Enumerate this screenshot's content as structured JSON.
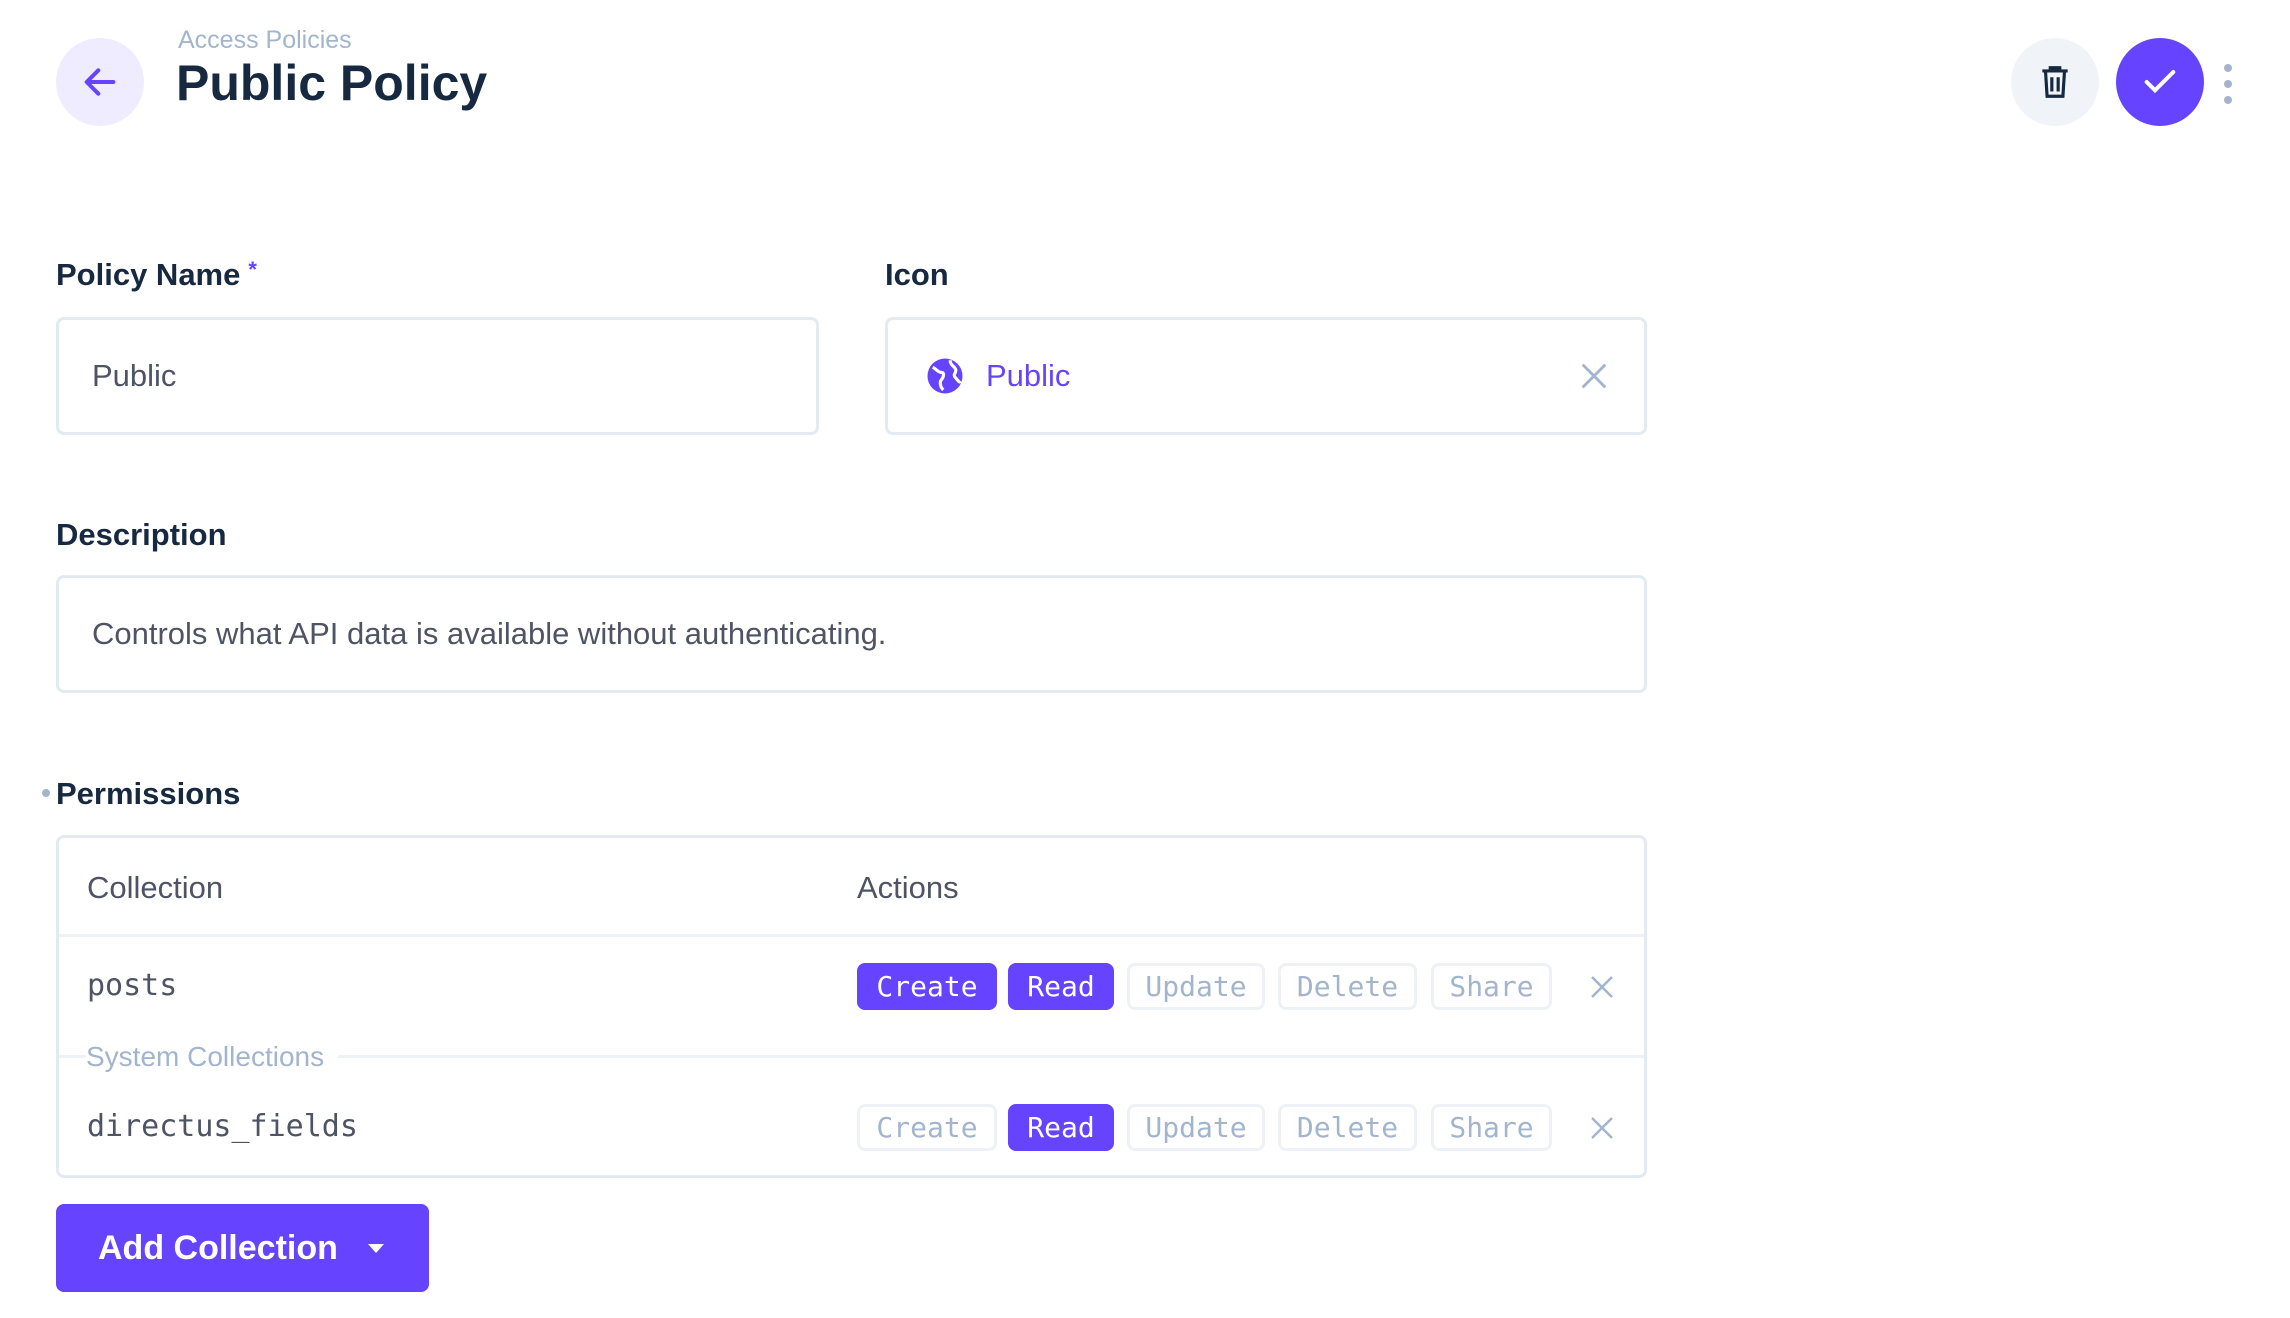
{
  "header": {
    "breadcrumb": "Access Policies",
    "title": "Public Policy"
  },
  "form": {
    "policy_name": {
      "label": "Policy Name",
      "required_mark": "*",
      "value": "Public"
    },
    "icon": {
      "label": "Icon",
      "value": "Public",
      "icon": "public-globe-icon"
    },
    "description": {
      "label": "Description",
      "value": "Controls what API data is available without authenticating."
    },
    "permissions": {
      "label": "Permissions",
      "headers": {
        "collection": "Collection",
        "actions": "Actions"
      },
      "group_label": "System Collections",
      "rows": [
        {
          "collection": "posts",
          "actions": [
            {
              "label": "Create",
              "on": true
            },
            {
              "label": "Read",
              "on": true
            },
            {
              "label": "Update",
              "on": false
            },
            {
              "label": "Delete",
              "on": false
            },
            {
              "label": "Share",
              "on": false
            }
          ]
        },
        {
          "collection": "directus_fields",
          "actions": [
            {
              "label": "Create",
              "on": false
            },
            {
              "label": "Read",
              "on": true
            },
            {
              "label": "Update",
              "on": false
            },
            {
              "label": "Delete",
              "on": false
            },
            {
              "label": "Share",
              "on": false
            }
          ]
        }
      ],
      "add_button": "Add Collection"
    }
  },
  "colors": {
    "accent": "#6644ff",
    "text": "#172940",
    "muted": "#a2b5cd",
    "border": "#e4eaf1"
  }
}
